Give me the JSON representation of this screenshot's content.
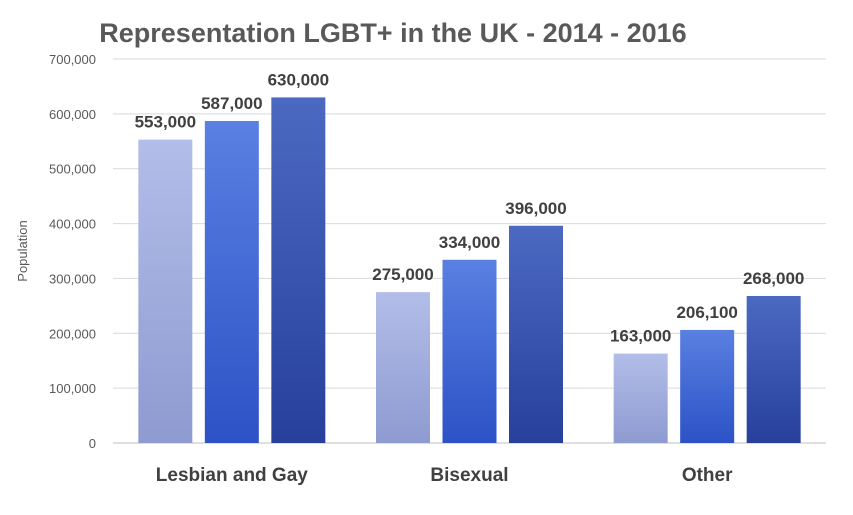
{
  "chart_data": {
    "type": "bar",
    "title": "Representation LGBT+ in the UK - 2014 - 2016",
    "xlabel": "",
    "ylabel": "Population",
    "ylim": [
      0,
      700000
    ],
    "yticks": [
      0,
      100000,
      200000,
      300000,
      400000,
      500000,
      600000,
      700000
    ],
    "ytick_labels": [
      "0",
      "100,000",
      "200,000",
      "300,000",
      "400,000",
      "500,000",
      "600,000",
      "700,000"
    ],
    "grid": true,
    "legend": "none",
    "categories": [
      "Lesbian and Gay",
      "Bisexual",
      "Other"
    ],
    "series": [
      {
        "values": [
          553000,
          275000,
          163000
        ],
        "labels": [
          "553,000",
          "275,000",
          "163,000"
        ],
        "color_top": "#b3bde9",
        "color_bottom": "#8e9bd0"
      },
      {
        "values": [
          587000,
          334000,
          206100
        ],
        "labels": [
          "587,000",
          "334,000",
          "206,100"
        ],
        "color_top": "#5a80e2",
        "color_bottom": "#2c52c6"
      },
      {
        "values": [
          630000,
          396000,
          268000
        ],
        "labels": [
          "630,000",
          "396,000",
          "268,000"
        ],
        "color_top": "#4c69c2",
        "color_bottom": "#26409c"
      }
    ]
  }
}
